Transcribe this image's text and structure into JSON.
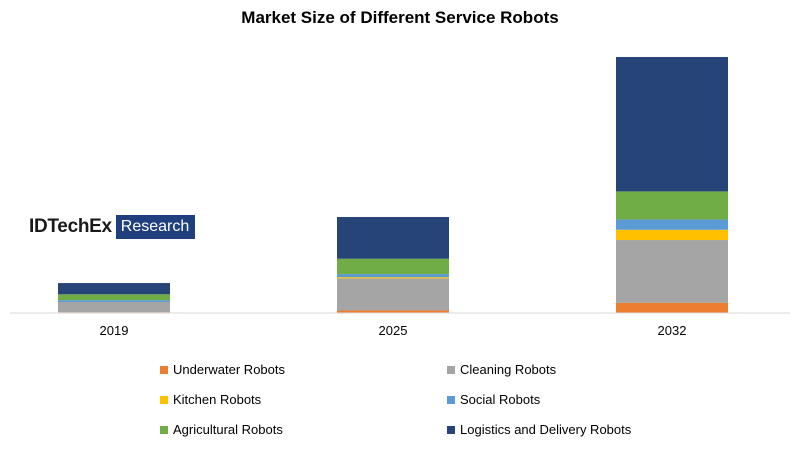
{
  "chart_data": {
    "type": "bar",
    "stacked": true,
    "title": "Market Size of Different Service Robots",
    "xlabel": "",
    "ylabel": "",
    "categories": [
      "2019",
      "2025",
      "2032"
    ],
    "ylim": [
      0,
      100
    ],
    "grid": false,
    "legend_position": "bottom",
    "series": [
      {
        "name": "Underwater Robots",
        "color": "#ed7d31",
        "values": [
          0.3,
          1,
          4
        ]
      },
      {
        "name": "Cleaning Robots",
        "color": "#a5a5a5",
        "values": [
          4,
          12.5,
          24.5
        ]
      },
      {
        "name": "Kitchen Robots",
        "color": "#ffc000",
        "values": [
          0,
          0.5,
          4
        ]
      },
      {
        "name": "Social Robots",
        "color": "#5b9bd5",
        "values": [
          0.7,
          1.2,
          4
        ]
      },
      {
        "name": "Agricultural Robots",
        "color": "#70ad47",
        "values": [
          2.3,
          6,
          11
        ]
      },
      {
        "name": "Logistics and Delivery Robots",
        "color": "#264478",
        "values": [
          4.4,
          16.3,
          52.5
        ]
      }
    ]
  },
  "logo": {
    "brand": "IDTechEx",
    "tag": "Research"
  }
}
